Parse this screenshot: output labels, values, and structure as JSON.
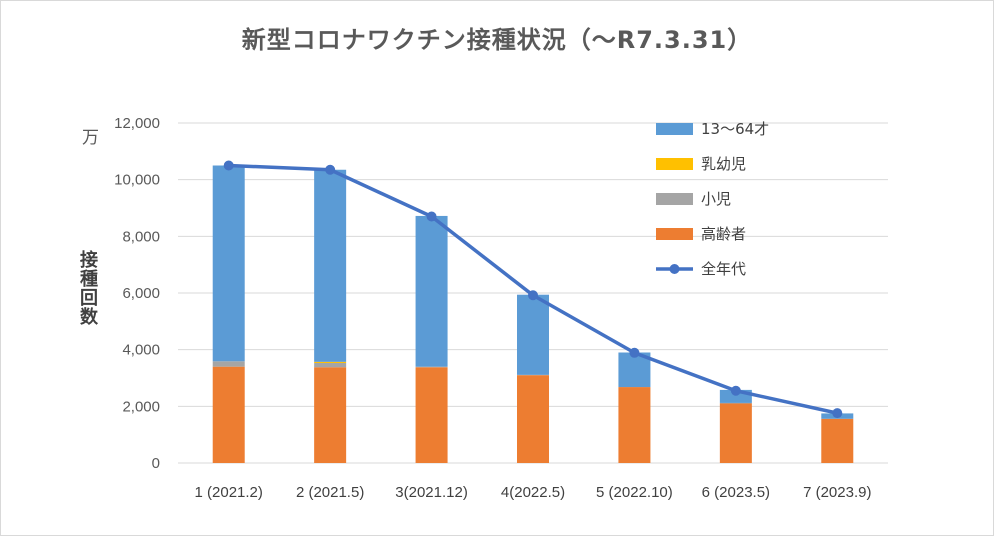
{
  "chart_data": {
    "type": "bar",
    "title": "新型コロナワクチン接種状況（～R7.3.31）",
    "unit_label": "万",
    "ylabel": "接種回数",
    "xlabel": "",
    "ylim": [
      0,
      12000
    ],
    "y_ticks": [
      0,
      2000,
      4000,
      6000,
      8000,
      10000,
      12000
    ],
    "y_tick_labels": [
      "0",
      "2,000",
      "4,000",
      "6,000",
      "8,000",
      "10,000",
      "12,000"
    ],
    "grid": true,
    "stacked": true,
    "legend_position": "top-right",
    "categories": [
      "1 (2021.2)",
      "2 (2021.5)",
      "3(2021.12)",
      "4(2022.5)",
      "5 (2022.10)",
      "6 (2023.5)",
      "7 (2023.9)"
    ],
    "series": [
      {
        "name": "高齢者",
        "type": "bar",
        "color": "#ed7d31",
        "values": [
          3400,
          3380,
          3380,
          3100,
          2680,
          2100,
          1560
        ]
      },
      {
        "name": "小児",
        "type": "bar",
        "color": "#a5a5a5",
        "values": [
          190,
          150,
          20,
          10,
          0,
          20,
          0
        ]
      },
      {
        "name": "乳幼児",
        "type": "bar",
        "color": "#ffc000",
        "values": [
          0,
          40,
          0,
          0,
          0,
          0,
          0
        ]
      },
      {
        "name": "13～64才",
        "type": "bar",
        "color": "#5b9bd5",
        "values": [
          6910,
          6780,
          5320,
          2830,
          1220,
          460,
          190
        ]
      },
      {
        "name": "全年代",
        "type": "line",
        "color": "#4472c4",
        "values": [
          10500,
          10350,
          8700,
          5920,
          3890,
          2550,
          1760
        ]
      }
    ],
    "legend_order": [
      "13～64才",
      "乳幼児",
      "小児",
      "高齢者",
      "全年代"
    ]
  }
}
